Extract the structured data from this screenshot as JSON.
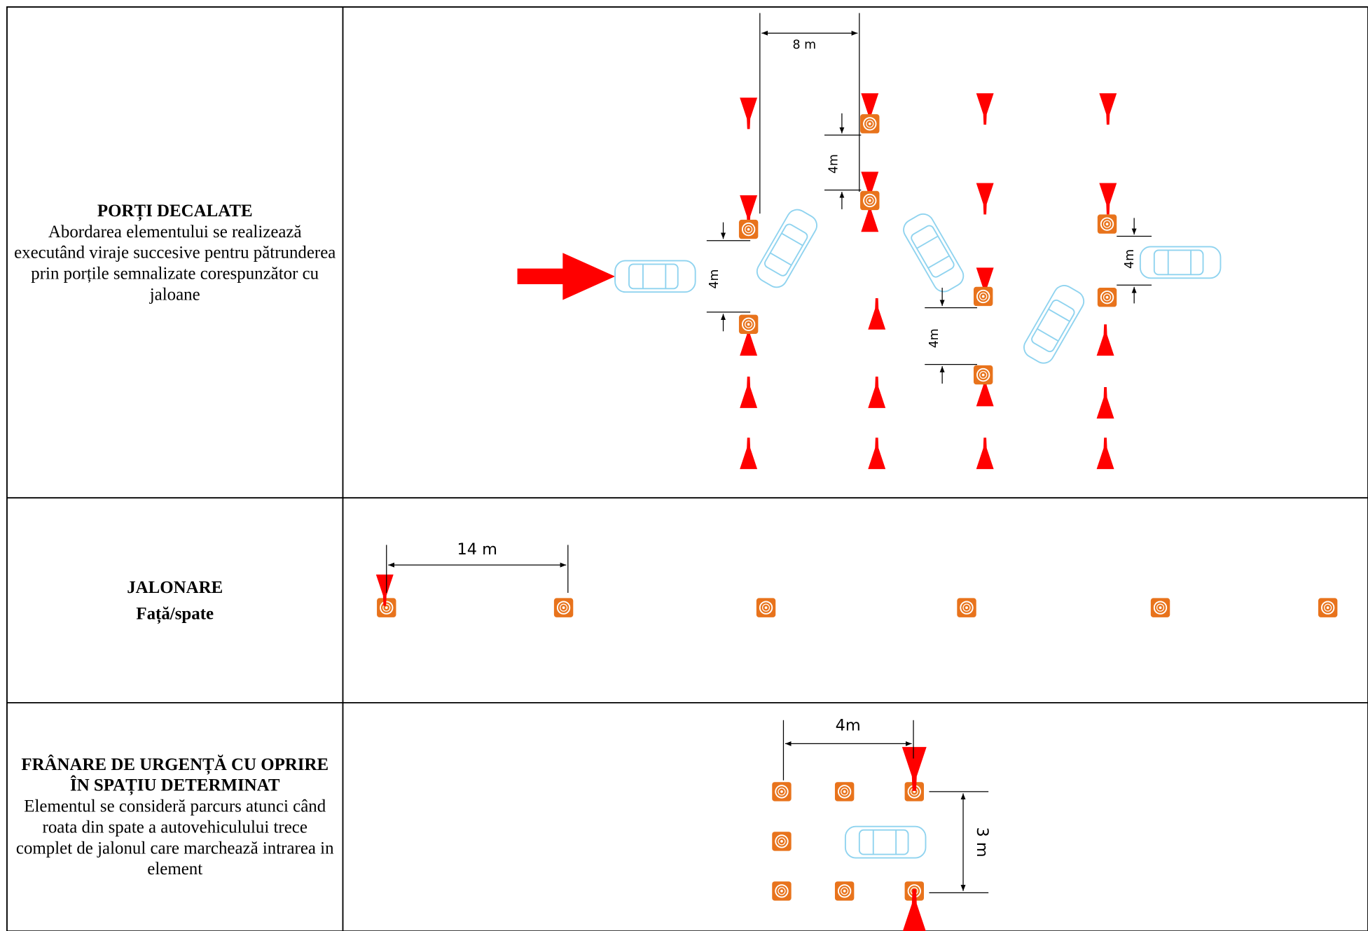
{
  "rows": [
    {
      "title": "PORȚI DECALATE",
      "description": "Abordarea elementului se realizează executând viraje succesive pentru pătrunderea prin porțile semnalizate corespunzător cu jaloane",
      "dimension_labels": [
        "8 m",
        "4m",
        "4m",
        "4m",
        "4m"
      ]
    },
    {
      "title": "JALONARE",
      "subtitle": "Față/spate",
      "dimension_labels": [
        "14 m"
      ]
    },
    {
      "title": "FRÂNARE DE URGENȚĂ CU OPRIRE ÎN SPAȚIU DETERMINAT",
      "description": "Elementul se consideră parcurs atunci când roata din spate a autovehiculului trece complet de jalonul care marchează intrarea in element",
      "dimension_labels": [
        "4m",
        "3 m"
      ]
    }
  ]
}
